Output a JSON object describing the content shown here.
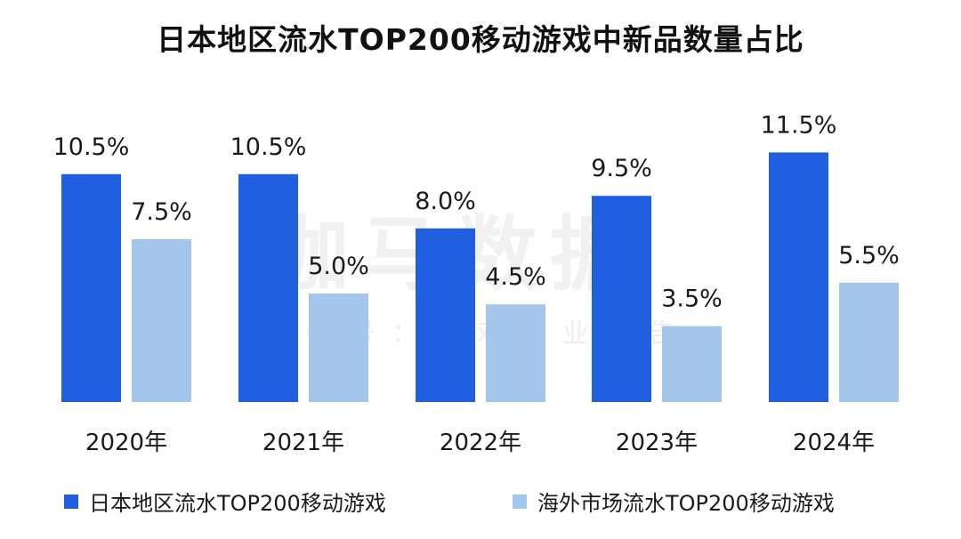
{
  "colors": {
    "series_japan": "#1f5fe0",
    "series_overseas": "#a4c6ea",
    "text": "#1a1a1a"
  },
  "watermark": {
    "main": "伽马数据",
    "sub": "微信号：游戏产业报告"
  },
  "chart_data": {
    "type": "bar",
    "title": "日本地区流水TOP200移动游戏中新品数量占比",
    "categories": [
      "2020年",
      "2021年",
      "2022年",
      "2023年",
      "2024年"
    ],
    "series": [
      {
        "name": "日本地区流水TOP200移动游戏",
        "values": [
          10.5,
          10.5,
          8.0,
          9.5,
          11.5
        ],
        "labels": [
          "10.5%",
          "10.5%",
          "8.0%",
          "9.5%",
          "11.5%"
        ]
      },
      {
        "name": "海外市场流水TOP200移动游戏",
        "values": [
          7.5,
          5.0,
          4.5,
          3.5,
          5.5
        ],
        "labels": [
          "7.5%",
          "5.0%",
          "4.5%",
          "3.5%",
          "5.5%"
        ]
      }
    ],
    "xlabel": "",
    "ylabel": "",
    "ylim": [
      0,
      12
    ],
    "grid": false,
    "legend_position": "bottom"
  }
}
